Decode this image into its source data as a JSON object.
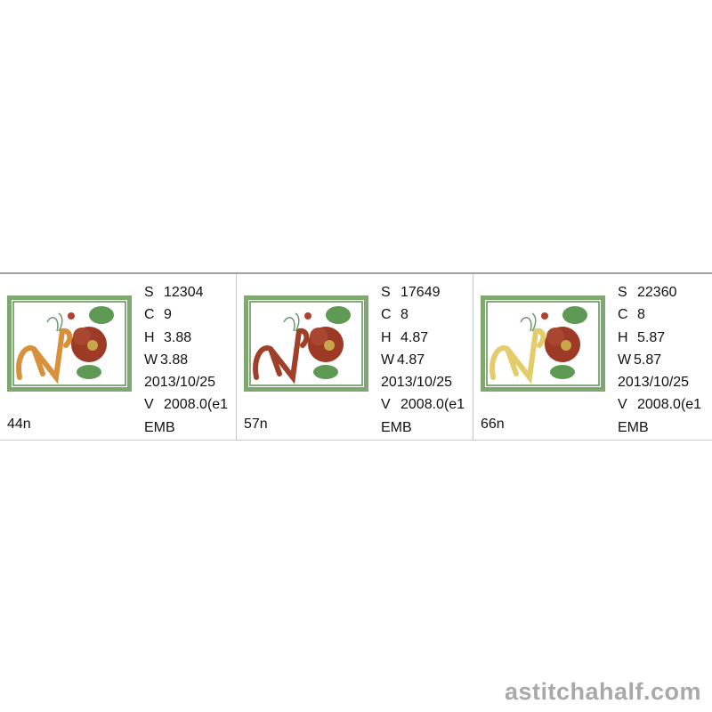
{
  "designs": [
    {
      "name": "44n",
      "stitches": "12304",
      "colors": "9",
      "height": "3.88",
      "width": "3.88",
      "date": "2013/10/25",
      "version": "2008.0(e1",
      "format": "EMB",
      "letter_color": "#d9903a",
      "labels": {
        "s": "S",
        "c": "C",
        "h": "H",
        "w": "W",
        "v": "V"
      }
    },
    {
      "name": "57n",
      "stitches": "17649",
      "colors": "8",
      "height": "4.87",
      "width": "4.87",
      "date": "2013/10/25",
      "version": "2008.0(e1",
      "format": "EMB",
      "letter_color": "#a0402a",
      "labels": {
        "s": "S",
        "c": "C",
        "h": "H",
        "w": "W",
        "v": "V"
      }
    },
    {
      "name": "66n",
      "stitches": "22360",
      "colors": "8",
      "height": "5.87",
      "width": "5.87",
      "date": "2013/10/25",
      "version": "2008.0(e1",
      "format": "EMB",
      "letter_color": "#e3cc6a",
      "labels": {
        "s": "S",
        "c": "C",
        "h": "H",
        "w": "W",
        "v": "V"
      }
    }
  ],
  "colors": {
    "frame": "#7fa870",
    "flower": "#9c3a26",
    "leaf": "#5f9a55"
  },
  "watermark": "astitchahalf.com"
}
